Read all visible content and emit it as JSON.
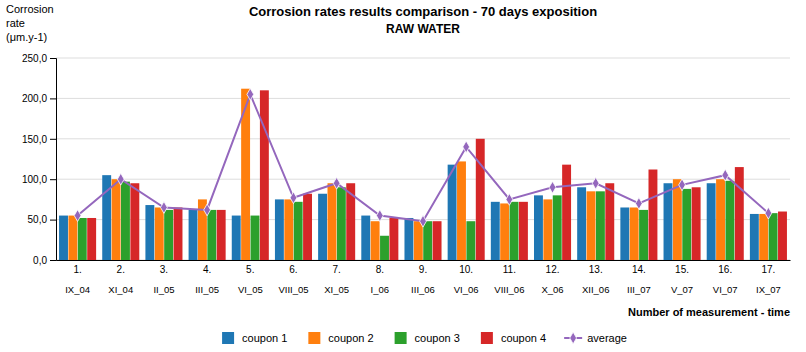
{
  "chart_data": {
    "type": "bar",
    "title": "Corrosion rates results comparison - 70 days exposition",
    "subtitle": "RAW WATER",
    "ylabel": [
      "Corrosion",
      "rate",
      "(μm.y-1)"
    ],
    "xlabel": "Number of measurement - time",
    "categories": [
      [
        "1.",
        "IX_04"
      ],
      [
        "2.",
        "XI_04"
      ],
      [
        "3.",
        "II_05"
      ],
      [
        "4.",
        "III_05"
      ],
      [
        "5.",
        "VI_05"
      ],
      [
        "6.",
        "VIII_05"
      ],
      [
        "7.",
        "XI_05"
      ],
      [
        "8.",
        "I_06"
      ],
      [
        "9.",
        "III_06"
      ],
      [
        "10.",
        "VI_06"
      ],
      [
        "11.",
        "VIII_06"
      ],
      [
        "12.",
        "X_06"
      ],
      [
        "13.",
        "XII_06"
      ],
      [
        "14.",
        "III_07"
      ],
      [
        "15.",
        "V_07"
      ],
      [
        "16.",
        "VI_07"
      ],
      [
        "17.",
        "IX_07"
      ]
    ],
    "series": [
      {
        "name": "coupon 1",
        "type": "bar",
        "values": [
          55,
          105,
          68,
          62,
          55,
          75,
          82,
          55,
          52,
          118,
          72,
          80,
          90,
          65,
          95,
          95,
          57
        ]
      },
      {
        "name": "coupon 2",
        "type": "bar",
        "values": [
          55,
          100,
          65,
          75,
          212,
          75,
          95,
          48,
          48,
          122,
          70,
          75,
          85,
          65,
          100,
          100,
          57
        ]
      },
      {
        "name": "coupon 3",
        "type": "bar",
        "values": [
          52,
          97,
          62,
          62,
          55,
          72,
          90,
          30,
          48,
          48,
          72,
          80,
          85,
          62,
          88,
          98,
          58
        ]
      },
      {
        "name": "coupon 4",
        "type": "bar",
        "values": [
          52,
          95,
          65,
          62,
          210,
          82,
          95,
          52,
          48,
          150,
          72,
          118,
          95,
          112,
          90,
          115,
          60
        ]
      },
      {
        "name": "average",
        "type": "line",
        "marker": "diamond",
        "values": [
          55,
          100,
          65,
          62,
          205,
          77,
          95,
          55,
          48,
          140,
          75,
          90,
          95,
          70,
          93,
          105,
          58
        ]
      }
    ],
    "ylim": [
      0,
      250
    ],
    "yticks": [
      {
        "value": 0,
        "label": "0,0"
      },
      {
        "value": 50,
        "label": "50,0"
      },
      {
        "value": 100,
        "label": "100,0"
      },
      {
        "value": 150,
        "label": "150,0"
      },
      {
        "value": 200,
        "label": "200,0"
      },
      {
        "value": 250,
        "label": "250,0"
      }
    ],
    "grid": true,
    "legend": "bottom"
  }
}
